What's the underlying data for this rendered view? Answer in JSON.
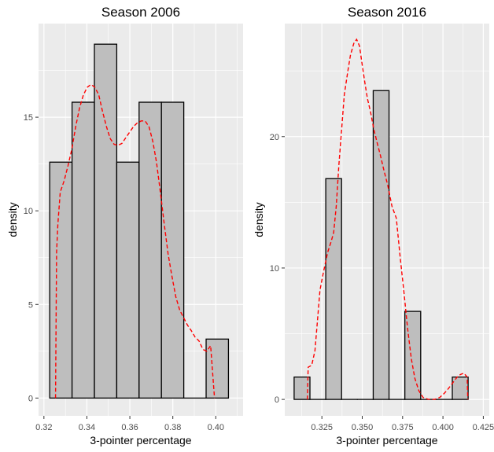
{
  "chart_data": [
    {
      "type": "bar",
      "subtype": "histogram-with-density",
      "title": "Season 2006",
      "xlabel": "3-pointer percentage",
      "ylabel": "density",
      "xlim": [
        0.3175,
        0.4127
      ],
      "ylim": [
        -0.95,
        20.0
      ],
      "x_ticks": [
        0.32,
        0.34,
        0.36,
        0.38,
        0.4
      ],
      "x_tick_labels": [
        "0.32",
        "0.34",
        "0.36",
        "0.38",
        "0.40"
      ],
      "y_ticks": [
        0,
        5,
        10,
        15
      ],
      "y_tick_labels": [
        "0",
        "5",
        "10",
        "15"
      ],
      "bins": [
        {
          "x0": 0.3227,
          "x1": 0.3331,
          "value": 12.6
        },
        {
          "x0": 0.3331,
          "x1": 0.3435,
          "value": 15.8
        },
        {
          "x0": 0.3435,
          "x1": 0.3539,
          "value": 18.9
        },
        {
          "x0": 0.3539,
          "x1": 0.3643,
          "value": 12.6
        },
        {
          "x0": 0.3643,
          "x1": 0.3747,
          "value": 15.8
        },
        {
          "x0": 0.3747,
          "x1": 0.3851,
          "value": 15.8
        },
        {
          "x0": 0.3851,
          "x1": 0.3955,
          "value": 0
        },
        {
          "x0": 0.3955,
          "x1": 0.4059,
          "value": 3.15
        }
      ],
      "density": {
        "x": [
          0.3254,
          0.3259,
          0.3265,
          0.3276,
          0.3294,
          0.3312,
          0.333,
          0.3348,
          0.3366,
          0.3384,
          0.3402,
          0.3419,
          0.3437,
          0.3455,
          0.3473,
          0.3491,
          0.3509,
          0.3527,
          0.3545,
          0.3563,
          0.3581,
          0.3599,
          0.3617,
          0.3635,
          0.3653,
          0.3671,
          0.3689,
          0.3707,
          0.3724,
          0.3742,
          0.376,
          0.3778,
          0.3796,
          0.3814,
          0.3832,
          0.385,
          0.3868,
          0.3886,
          0.3904,
          0.3922,
          0.394,
          0.3958,
          0.3976,
          0.3994
        ],
        "y": [
          0,
          7.8,
          9.3,
          11.0,
          11.6,
          12.4,
          13.3,
          14.5,
          15.5,
          16.2,
          16.6,
          16.75,
          16.6,
          16.2,
          15.3,
          14.5,
          13.85,
          13.55,
          13.5,
          13.6,
          13.9,
          14.2,
          14.5,
          14.7,
          14.8,
          14.8,
          14.5,
          13.7,
          12.6,
          11.0,
          9.3,
          7.7,
          6.5,
          5.4,
          4.7,
          4.3,
          3.9,
          3.6,
          3.25,
          3.05,
          2.6,
          2.5,
          2.8,
          0
        ]
      }
    },
    {
      "type": "bar",
      "subtype": "histogram-with-density",
      "title": "Season 2016",
      "xlabel": "3-pointer percentage",
      "ylabel": "density",
      "xlim": [
        0.302,
        0.4287
      ],
      "ylim": [
        -1.25,
        28.6
      ],
      "x_ticks": [
        0.325,
        0.35,
        0.375,
        0.4,
        0.425
      ],
      "x_tick_labels": [
        "0.325",
        "0.350",
        "0.375",
        "0.400",
        "0.425"
      ],
      "y_ticks": [
        0,
        10,
        20
      ],
      "y_tick_labels": [
        "0",
        "10",
        "20"
      ],
      "bins": [
        {
          "x0": 0.3078,
          "x1": 0.3176,
          "value": 1.7
        },
        {
          "x0": 0.3176,
          "x1": 0.3274,
          "value": 0
        },
        {
          "x0": 0.3274,
          "x1": 0.3372,
          "value": 16.8
        },
        {
          "x0": 0.3372,
          "x1": 0.347,
          "value": 0
        },
        {
          "x0": 0.347,
          "x1": 0.3568,
          "value": 0
        },
        {
          "x0": 0.3568,
          "x1": 0.3666,
          "value": 23.5
        },
        {
          "x0": 0.3666,
          "x1": 0.3764,
          "value": 0
        },
        {
          "x0": 0.3764,
          "x1": 0.3862,
          "value": 6.7
        },
        {
          "x0": 0.3862,
          "x1": 0.396,
          "value": 0
        },
        {
          "x0": 0.396,
          "x1": 0.4058,
          "value": 0
        },
        {
          "x0": 0.4058,
          "x1": 0.4156,
          "value": 1.7
        }
      ],
      "density": {
        "x": [
          0.316,
          0.3165,
          0.3187,
          0.3207,
          0.3222,
          0.3238,
          0.3259,
          0.3286,
          0.3307,
          0.3323,
          0.3339,
          0.3355,
          0.3372,
          0.3389,
          0.3411,
          0.3427,
          0.3448,
          0.3465,
          0.3483,
          0.3497,
          0.3515,
          0.3532,
          0.3551,
          0.3571,
          0.3591,
          0.3612,
          0.3633,
          0.3658,
          0.3684,
          0.3711,
          0.3736,
          0.3758,
          0.3781,
          0.3804,
          0.3826,
          0.3851,
          0.3877,
          0.3911,
          0.3948,
          0.398,
          0.4007,
          0.4029,
          0.4051,
          0.4069,
          0.4088,
          0.4109,
          0.413,
          0.415,
          0.4154
        ],
        "y": [
          0,
          2.45,
          2.6,
          3.7,
          5.9,
          8.3,
          9.65,
          11.2,
          12.0,
          12.7,
          14.7,
          17.8,
          20.5,
          23.2,
          25.0,
          26.2,
          27.1,
          27.4,
          26.9,
          25.7,
          24.2,
          22.9,
          21.9,
          20.6,
          19.6,
          18.6,
          17.5,
          16.3,
          14.7,
          13.8,
          10.7,
          8.2,
          5.4,
          3.1,
          1.6,
          0.65,
          0.15,
          0,
          0,
          0.15,
          0.45,
          0.75,
          1.1,
          1.4,
          1.7,
          1.9,
          2.0,
          1.7,
          0
        ]
      }
    }
  ]
}
